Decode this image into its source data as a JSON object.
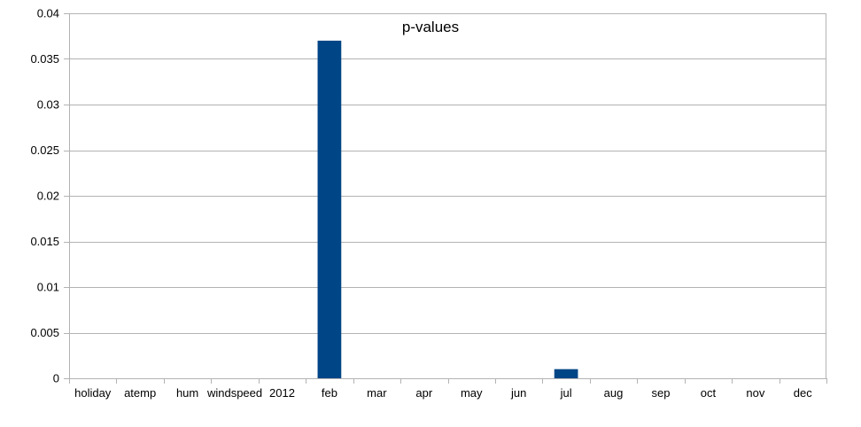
{
  "chart_data": {
    "type": "bar",
    "title": "p-values",
    "xlabel": "",
    "ylabel": "",
    "categories": [
      "holiday",
      "atemp",
      "hum",
      "windspeed",
      "2012",
      "feb",
      "mar",
      "apr",
      "may",
      "jun",
      "jul",
      "aug",
      "sep",
      "oct",
      "nov",
      "dec"
    ],
    "values": [
      0,
      0,
      0,
      0,
      0,
      0.037,
      0,
      0,
      0,
      0,
      0.001,
      0,
      0,
      0,
      0,
      0
    ],
    "ylim": [
      0,
      0.04
    ],
    "yticks": [
      "0",
      "0.005",
      "0.01",
      "0.015",
      "0.02",
      "0.025",
      "0.03",
      "0.035",
      "0.04"
    ],
    "ytick_values": [
      0,
      0.005,
      0.01,
      0.015,
      0.02,
      0.025,
      0.03,
      0.035,
      0.04
    ],
    "grid": true,
    "legend": "none",
    "bar_color": "#004586",
    "grid_color": "#b3b3b3"
  }
}
